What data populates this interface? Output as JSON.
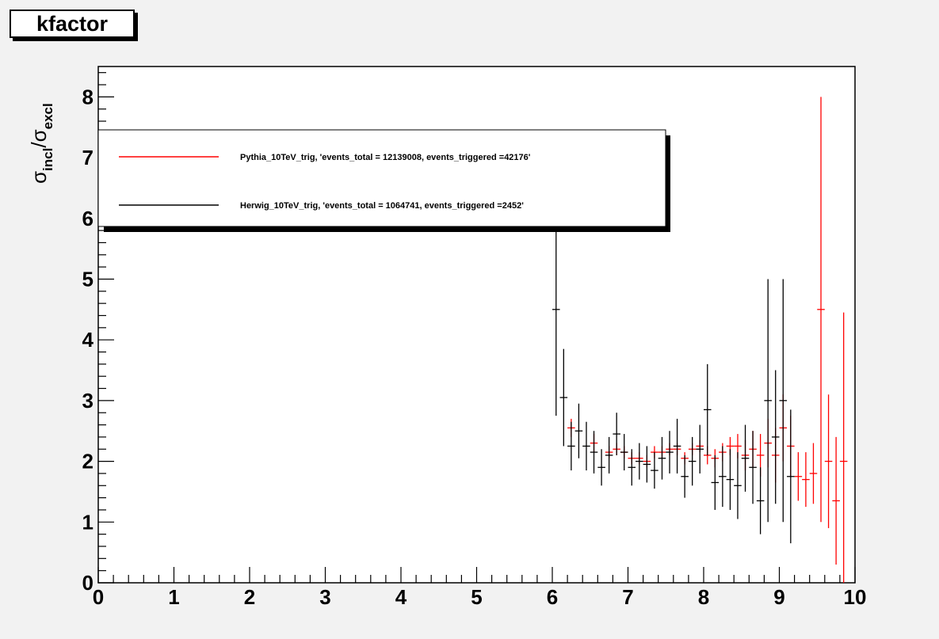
{
  "chart_data": {
    "type": "scatter",
    "title": "kfactor",
    "ylabel": {
      "symbol": "σ",
      "num_sub": "incl",
      "den_sub": "excl"
    },
    "xlabel": "",
    "xlim": [
      0,
      10
    ],
    "ylim": [
      0,
      8.5
    ],
    "x_ticks": [
      "0",
      "1",
      "2",
      "3",
      "4",
      "5",
      "6",
      "7",
      "8",
      "9",
      "10"
    ],
    "y_ticks": [
      "0",
      "1",
      "2",
      "3",
      "4",
      "5",
      "6",
      "7",
      "8"
    ],
    "grid": false,
    "legend_position": "top-left",
    "bin_width": 0.1,
    "series": [
      {
        "name": "Pythia_10TeV_trig, 'events_total = 12139008, events_triggered =42176'",
        "color": "#ff0000",
        "x": [
          6.25,
          6.55,
          6.75,
          6.85,
          6.95,
          7.05,
          7.15,
          7.25,
          7.35,
          7.45,
          7.55,
          7.65,
          7.75,
          7.85,
          7.95,
          8.05,
          8.15,
          8.25,
          8.35,
          8.45,
          8.55,
          8.65,
          8.75,
          8.85,
          8.95,
          9.05,
          9.15,
          9.25,
          9.35,
          9.45,
          9.55,
          9.65,
          9.75,
          9.85
        ],
        "y": [
          2.55,
          2.3,
          2.15,
          2.2,
          2.15,
          2.05,
          2.05,
          2.0,
          2.15,
          2.15,
          2.2,
          2.2,
          2.05,
          2.2,
          2.25,
          2.1,
          2.05,
          2.15,
          2.25,
          2.25,
          2.1,
          2.2,
          2.1,
          2.3,
          2.1,
          2.55,
          2.25,
          1.75,
          1.7,
          1.8,
          4.5,
          2.0,
          1.35,
          2.0
        ],
        "err": [
          0.15,
          0.15,
          0.1,
          0.1,
          0.1,
          0.1,
          0.1,
          0.1,
          0.1,
          0.1,
          0.1,
          0.1,
          0.1,
          0.1,
          0.1,
          0.15,
          0.15,
          0.15,
          0.15,
          0.2,
          0.25,
          0.3,
          0.35,
          0.4,
          0.45,
          0.55,
          0.5,
          0.4,
          0.45,
          0.5,
          3.5,
          1.1,
          1.05,
          2.45
        ]
      },
      {
        "name": "Herwig_10TeV_trig, 'events_total = 1064741, events_triggered =2452'",
        "color": "#000000",
        "x": [
          6.05,
          6.15,
          6.25,
          6.35,
          6.45,
          6.55,
          6.65,
          6.75,
          6.85,
          6.95,
          7.05,
          7.15,
          7.25,
          7.35,
          7.45,
          7.55,
          7.65,
          7.75,
          7.85,
          7.95,
          8.05,
          8.15,
          8.25,
          8.35,
          8.45,
          8.55,
          8.65,
          8.75,
          8.85,
          8.95,
          9.05,
          9.15
        ],
        "y": [
          4.5,
          3.05,
          2.25,
          2.5,
          2.25,
          2.15,
          1.9,
          2.1,
          2.45,
          2.15,
          1.9,
          2.0,
          1.95,
          1.85,
          2.05,
          2.15,
          2.25,
          1.75,
          2.0,
          2.2,
          2.85,
          1.65,
          1.75,
          1.7,
          1.6,
          2.05,
          1.9,
          1.35,
          3.0,
          2.4,
          3.0,
          1.75
        ],
        "err": [
          1.75,
          0.8,
          0.4,
          0.45,
          0.4,
          0.35,
          0.3,
          0.3,
          0.35,
          0.3,
          0.3,
          0.3,
          0.3,
          0.3,
          0.35,
          0.35,
          0.45,
          0.35,
          0.4,
          0.4,
          0.75,
          0.45,
          0.5,
          0.5,
          0.55,
          0.55,
          0.6,
          0.55,
          2.0,
          1.1,
          2.0,
          1.1
        ]
      }
    ]
  }
}
